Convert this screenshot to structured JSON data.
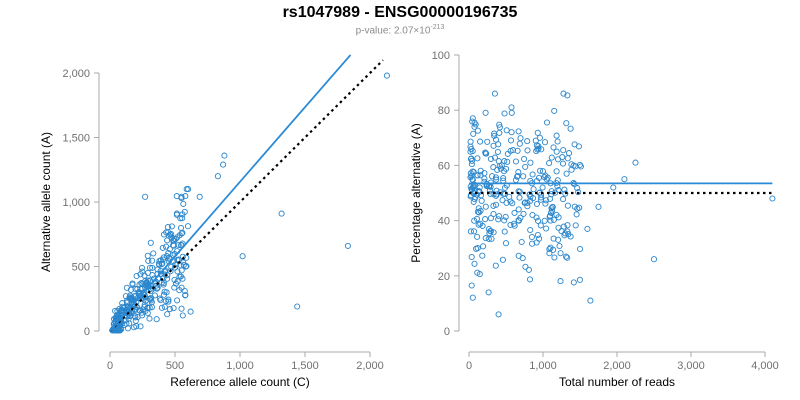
{
  "title": "rs1047989 - ENSG00000196735",
  "subtitle": {
    "prefix": "p-value: 2.07×10",
    "exponent": "-213"
  },
  "colors": {
    "points": "#2b86cc",
    "fit": "#2b8ad6",
    "reference": "#000000",
    "axis": "#aaaaaa",
    "tick_text": "#707070"
  },
  "chart_data": [
    {
      "type": "scatter",
      "xlabel": "Reference allele count (C)",
      "ylabel": "Alternative allele count (A)",
      "xlim": [
        0,
        2000
      ],
      "ylim": [
        0,
        2000
      ],
      "xticks": [
        "0",
        "500",
        "1,000",
        "1,500",
        "2,000"
      ],
      "yticks": [
        "0",
        "500",
        "1,000",
        "1,500",
        "2,000"
      ],
      "fit_line": {
        "x": [
          0,
          1850
        ],
        "y": [
          0,
          2140
        ]
      },
      "reference_line": {
        "x": [
          0,
          2100
        ],
        "y": [
          0,
          2100
        ]
      },
      "outliers": [
        [
          2130,
          1980
        ],
        [
          1830,
          660
        ],
        [
          1440,
          190
        ],
        [
          1320,
          910
        ],
        [
          1020,
          580
        ],
        [
          880,
          1360
        ],
        [
          870,
          1290
        ],
        [
          830,
          1200
        ],
        [
          690,
          1040
        ],
        [
          620,
          150
        ],
        [
          550,
          1030
        ],
        [
          270,
          1040
        ],
        [
          560,
          120
        ]
      ],
      "cluster_seed": 1047989,
      "cluster_n": 330
    },
    {
      "type": "scatter",
      "xlabel": "Total number of reads",
      "ylabel": "Percentage alternative (A)",
      "xlim": [
        0,
        4000
      ],
      "ylim": [
        0,
        100
      ],
      "xticks": [
        "0",
        "1,000",
        "2,000",
        "3,000",
        "4,000"
      ],
      "yticks": [
        "0",
        "20",
        "40",
        "60",
        "80",
        "100"
      ],
      "fit_line": {
        "x": [
          0,
          4100
        ],
        "y": [
          53.5,
          53.5
        ]
      },
      "reference_line": {
        "x": [
          0,
          4100
        ],
        "y": [
          50,
          50
        ]
      },
      "outliers": [
        [
          4100,
          48
        ],
        [
          2500,
          26
        ],
        [
          1640,
          11
        ],
        [
          1600,
          37
        ],
        [
          2250,
          61
        ],
        [
          2100,
          55
        ],
        [
          1950,
          52
        ],
        [
          1750,
          45
        ],
        [
          400,
          6
        ],
        [
          350,
          86
        ]
      ]
    }
  ]
}
